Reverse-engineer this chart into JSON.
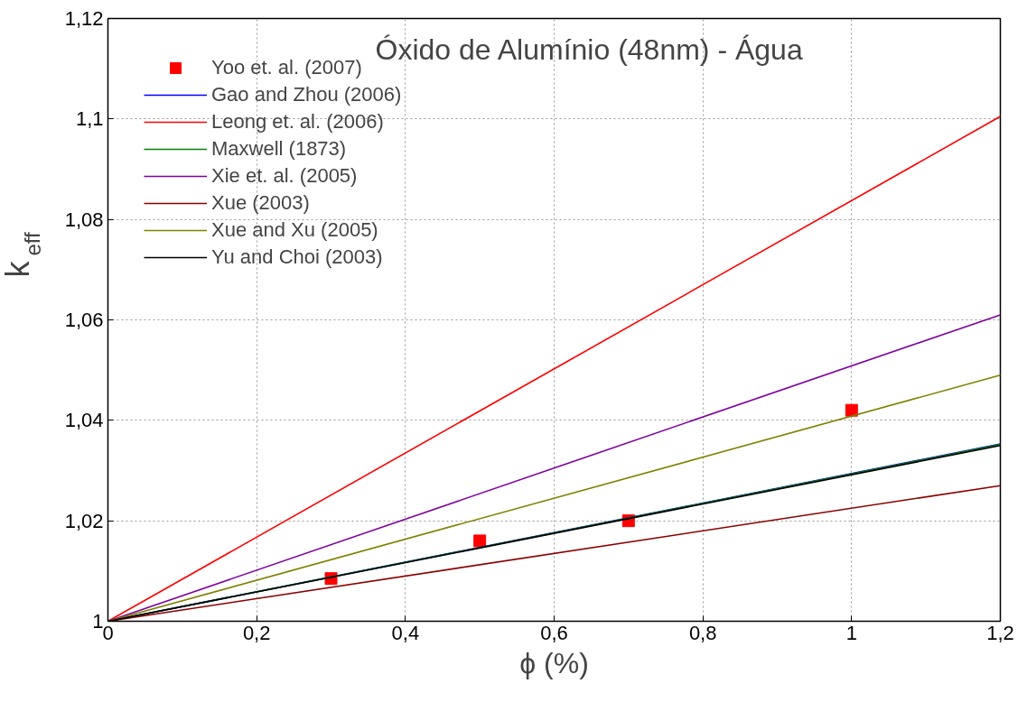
{
  "chart_data": {
    "type": "line",
    "title": "Óxido de Alumínio (48nm) - Água",
    "xlabel": "ϕ (%)",
    "ylabel": "k$_{eff}$",
    "xlim": [
      0,
      1.2
    ],
    "ylim": [
      1,
      1.12
    ],
    "xticks": [
      0,
      {
        "value": 0.2,
        "label": "0,2"
      },
      {
        "value": 0.4,
        "label": "0,4"
      },
      {
        "value": 0.6,
        "label": "0,6"
      },
      {
        "value": 0.8,
        "label": "0,8"
      },
      1,
      {
        "value": 1.2,
        "label": "1,2"
      }
    ],
    "yticks": [
      1,
      {
        "value": 1.02,
        "label": "1,02"
      },
      {
        "value": 1.04,
        "label": "1,04"
      },
      {
        "value": 1.06,
        "label": "1,06"
      },
      {
        "value": 1.08,
        "label": "1,08"
      },
      {
        "value": 1.1,
        "label": "1,1"
      },
      {
        "value": 1.12,
        "label": "1,12"
      }
    ],
    "grid": true,
    "legend": "top left",
    "series": [
      {
        "name": "Yoo et. al. (2007)",
        "type": "scatter",
        "marker": "square",
        "color": "#ff0000",
        "x": [
          0.3,
          0.5,
          0.7,
          1.0
        ],
        "values": [
          1.0085,
          1.016,
          1.02,
          1.042
        ]
      },
      {
        "name": "Gao and Zhou (2006)",
        "color": "#0000ff",
        "x": [
          0,
          1.2
        ],
        "values": [
          1,
          1.0353
        ]
      },
      {
        "name": "Leong et. al. (2006)",
        "color": "#ff0000",
        "x": [
          0,
          1.2
        ],
        "values": [
          1,
          1.1005
        ]
      },
      {
        "name": "Maxwell (1873)",
        "color": "#008000",
        "x": [
          0,
          1.2
        ],
        "values": [
          1,
          1.0352
        ]
      },
      {
        "name": "Xie et. al. (2005)",
        "color": "#8000a0",
        "x": [
          0,
          1.2
        ],
        "values": [
          1,
          1.061
        ]
      },
      {
        "name": "Xue (2003)",
        "color": "#8b0000",
        "x": [
          0,
          1.2
        ],
        "values": [
          1,
          1.027
        ]
      },
      {
        "name": "Xue and Xu (2005)",
        "color": "#808000",
        "x": [
          0,
          1.2
        ],
        "values": [
          1,
          1.049
        ]
      },
      {
        "name": "Yu and Choi (2003)",
        "color": "#000000",
        "x": [
          0,
          1.2
        ],
        "values": [
          1,
          1.035
        ]
      }
    ]
  }
}
